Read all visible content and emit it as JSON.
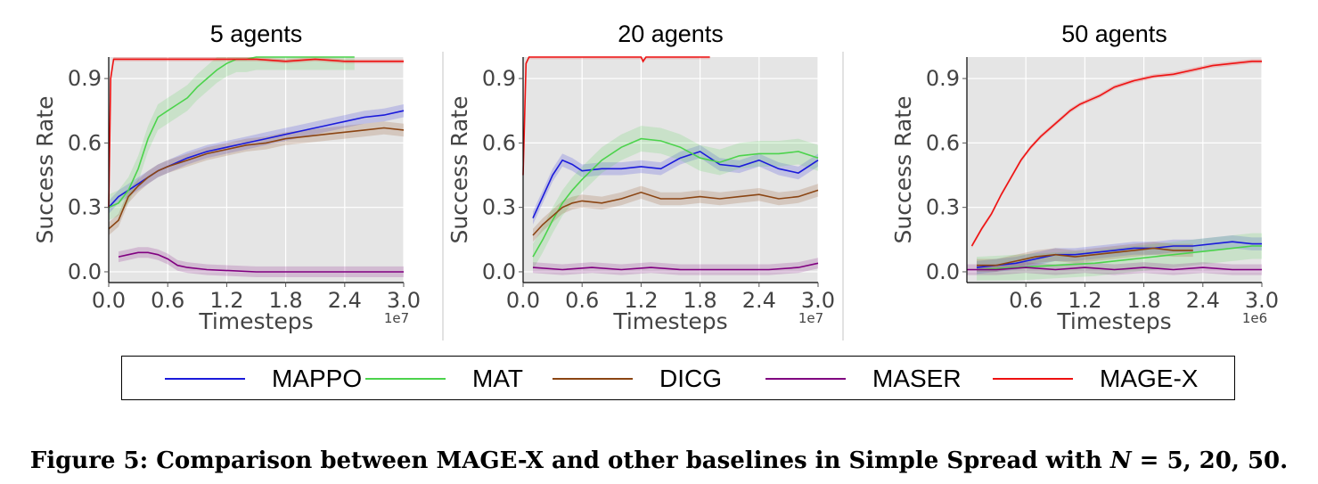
{
  "figure": {
    "caption_prefix": "Figure 5: Comparison between MAGE-X and other baselines in Simple Spread with ",
    "caption_var": "N",
    "caption_suffix": " = 5, 20, 50."
  },
  "legend": [
    {
      "name": "MAPPO",
      "color": "#1a1adb"
    },
    {
      "name": "MAT",
      "color": "#4cd34c"
    },
    {
      "name": "DICG",
      "color": "#8b4513"
    },
    {
      "name": "MASER",
      "color": "#800080"
    },
    {
      "name": "MAGE-X",
      "color": "#ee1111"
    }
  ],
  "chart_data": [
    {
      "type": "line",
      "title": "5 agents",
      "xlabel": "Timesteps",
      "ylabel": "Success Rate",
      "x_multiplier": "1e7",
      "xlim": [
        0.0,
        3.0
      ],
      "ylim": [
        -0.05,
        1.0
      ],
      "xticks": [
        "0.0",
        "0.6",
        "1.2",
        "1.8",
        "2.4",
        "3.0"
      ],
      "yticks": [
        "0.0",
        "0.3",
        "0.6",
        "0.9"
      ],
      "grid": true,
      "series": [
        {
          "name": "MAPPO",
          "x": [
            0.0,
            0.1,
            0.2,
            0.3,
            0.4,
            0.5,
            0.6,
            0.8,
            1.0,
            1.2,
            1.4,
            1.6,
            1.8,
            2.0,
            2.2,
            2.4,
            2.6,
            2.8,
            3.0
          ],
          "y": [
            0.3,
            0.35,
            0.38,
            0.41,
            0.44,
            0.47,
            0.49,
            0.53,
            0.56,
            0.58,
            0.6,
            0.62,
            0.64,
            0.66,
            0.68,
            0.7,
            0.72,
            0.73,
            0.75
          ]
        },
        {
          "name": "MAT",
          "x": [
            0.0,
            0.1,
            0.2,
            0.3,
            0.4,
            0.5,
            0.6,
            0.7,
            0.8,
            0.9,
            1.0,
            1.1,
            1.2,
            1.3,
            1.4,
            1.5,
            1.7,
            2.0,
            2.3,
            2.5
          ],
          "y": [
            0.3,
            0.32,
            0.38,
            0.48,
            0.62,
            0.72,
            0.75,
            0.78,
            0.81,
            0.86,
            0.9,
            0.94,
            0.97,
            0.99,
            0.99,
            1.0,
            1.0,
            1.0,
            1.0,
            1.0
          ]
        },
        {
          "name": "DICG",
          "x": [
            0.0,
            0.1,
            0.2,
            0.3,
            0.4,
            0.5,
            0.6,
            0.8,
            1.0,
            1.2,
            1.4,
            1.6,
            1.8,
            2.0,
            2.2,
            2.4,
            2.6,
            2.8,
            3.0
          ],
          "y": [
            0.2,
            0.24,
            0.35,
            0.4,
            0.44,
            0.47,
            0.49,
            0.52,
            0.55,
            0.57,
            0.59,
            0.6,
            0.62,
            0.63,
            0.64,
            0.65,
            0.66,
            0.67,
            0.66
          ]
        },
        {
          "name": "MASER",
          "x": [
            0.1,
            0.2,
            0.3,
            0.4,
            0.5,
            0.6,
            0.7,
            0.8,
            1.0,
            1.5,
            2.0,
            2.5,
            3.0
          ],
          "y": [
            0.07,
            0.08,
            0.09,
            0.09,
            0.08,
            0.06,
            0.03,
            0.02,
            0.01,
            0.0,
            0.0,
            0.0,
            0.0
          ]
        },
        {
          "name": "MAGE-X",
          "x": [
            0.0,
            0.02,
            0.05,
            0.1,
            0.3,
            0.6,
            0.9,
            1.2,
            1.5,
            1.8,
            2.1,
            2.4,
            2.7,
            3.0
          ],
          "y": [
            0.3,
            0.9,
            0.99,
            0.99,
            0.99,
            0.99,
            0.99,
            0.99,
            0.99,
            0.98,
            0.99,
            0.98,
            0.98,
            0.98
          ]
        }
      ]
    },
    {
      "type": "line",
      "title": "20 agents",
      "xlabel": "Timesteps",
      "ylabel": "Success Rate",
      "x_multiplier": "1e7",
      "xlim": [
        0.0,
        3.0
      ],
      "ylim": [
        -0.05,
        1.0
      ],
      "xticks": [
        "0.0",
        "0.6",
        "1.2",
        "1.8",
        "2.4",
        "3.0"
      ],
      "yticks": [
        "0.0",
        "0.3",
        "0.6",
        "0.9"
      ],
      "grid": true,
      "series": [
        {
          "name": "MAPPO",
          "x": [
            0.1,
            0.2,
            0.3,
            0.4,
            0.5,
            0.6,
            0.8,
            1.0,
            1.2,
            1.4,
            1.6,
            1.8,
            2.0,
            2.2,
            2.4,
            2.6,
            2.8,
            3.0
          ],
          "y": [
            0.25,
            0.35,
            0.45,
            0.52,
            0.5,
            0.47,
            0.48,
            0.48,
            0.49,
            0.48,
            0.53,
            0.56,
            0.5,
            0.49,
            0.52,
            0.48,
            0.46,
            0.52
          ]
        },
        {
          "name": "MAT",
          "x": [
            0.1,
            0.2,
            0.3,
            0.4,
            0.5,
            0.6,
            0.8,
            1.0,
            1.2,
            1.4,
            1.6,
            1.8,
            2.0,
            2.2,
            2.4,
            2.6,
            2.8,
            3.0
          ],
          "y": [
            0.07,
            0.15,
            0.24,
            0.32,
            0.38,
            0.43,
            0.52,
            0.58,
            0.62,
            0.61,
            0.58,
            0.53,
            0.51,
            0.54,
            0.55,
            0.55,
            0.56,
            0.53
          ]
        },
        {
          "name": "DICG",
          "x": [
            0.1,
            0.2,
            0.3,
            0.4,
            0.5,
            0.6,
            0.8,
            1.0,
            1.2,
            1.4,
            1.6,
            1.8,
            2.0,
            2.2,
            2.4,
            2.6,
            2.8,
            3.0
          ],
          "y": [
            0.17,
            0.22,
            0.26,
            0.3,
            0.32,
            0.33,
            0.32,
            0.34,
            0.37,
            0.34,
            0.34,
            0.35,
            0.34,
            0.35,
            0.36,
            0.34,
            0.35,
            0.38
          ]
        },
        {
          "name": "MASER",
          "x": [
            0.1,
            0.4,
            0.7,
            1.0,
            1.3,
            1.6,
            1.9,
            2.2,
            2.5,
            2.8,
            3.0
          ],
          "y": [
            0.02,
            0.01,
            0.02,
            0.01,
            0.02,
            0.01,
            0.01,
            0.01,
            0.01,
            0.02,
            0.04
          ]
        },
        {
          "name": "MAGE-X",
          "x": [
            0.0,
            0.03,
            0.06,
            0.1,
            0.4,
            0.8,
            1.2,
            1.22,
            1.25,
            1.5,
            1.9
          ],
          "y": [
            0.45,
            0.97,
            1.0,
            1.0,
            1.0,
            1.0,
            1.0,
            0.98,
            1.0,
            1.0,
            1.0
          ]
        }
      ]
    },
    {
      "type": "line",
      "title": "50 agents",
      "xlabel": "Timesteps",
      "ylabel": "Success Rate",
      "x_multiplier": "1e6",
      "xlim": [
        0.0,
        3.0
      ],
      "ylim": [
        -0.05,
        1.0
      ],
      "xticks": [
        "0.6",
        "1.2",
        "1.8",
        "2.4",
        "3.0"
      ],
      "yticks": [
        "0.0",
        "0.3",
        "0.6",
        "0.9"
      ],
      "grid": true,
      "series": [
        {
          "name": "MAPPO",
          "x": [
            0.1,
            0.3,
            0.5,
            0.7,
            0.9,
            1.1,
            1.3,
            1.5,
            1.7,
            1.9,
            2.1,
            2.3,
            2.5,
            2.7,
            2.9,
            3.0
          ],
          "y": [
            0.02,
            0.03,
            0.04,
            0.06,
            0.08,
            0.08,
            0.09,
            0.1,
            0.11,
            0.11,
            0.12,
            0.12,
            0.13,
            0.14,
            0.13,
            0.13
          ]
        },
        {
          "name": "MAT",
          "x": [
            0.1,
            0.5,
            0.9,
            1.3,
            1.7,
            2.1,
            2.5,
            2.9,
            3.0
          ],
          "y": [
            0.01,
            0.02,
            0.03,
            0.04,
            0.06,
            0.08,
            0.1,
            0.12,
            0.12
          ]
        },
        {
          "name": "DICG",
          "x": [
            0.1,
            0.3,
            0.5,
            0.7,
            0.9,
            1.1,
            1.3,
            1.5,
            1.7,
            1.9,
            2.1,
            2.3
          ],
          "y": [
            0.03,
            0.03,
            0.05,
            0.07,
            0.08,
            0.07,
            0.08,
            0.09,
            0.1,
            0.11,
            0.1,
            0.1
          ]
        },
        {
          "name": "MASER",
          "x": [
            0.0,
            0.3,
            0.6,
            0.9,
            1.2,
            1.5,
            1.8,
            2.1,
            2.4,
            2.7,
            3.0
          ],
          "y": [
            0.01,
            0.01,
            0.02,
            0.01,
            0.02,
            0.01,
            0.02,
            0.01,
            0.02,
            0.01,
            0.01
          ]
        },
        {
          "name": "MAGE-X",
          "x": [
            0.05,
            0.15,
            0.25,
            0.35,
            0.45,
            0.55,
            0.65,
            0.75,
            0.85,
            0.95,
            1.05,
            1.15,
            1.25,
            1.35,
            1.5,
            1.7,
            1.9,
            2.1,
            2.3,
            2.5,
            2.7,
            2.9,
            3.0
          ],
          "y": [
            0.12,
            0.2,
            0.27,
            0.36,
            0.44,
            0.52,
            0.58,
            0.63,
            0.67,
            0.71,
            0.75,
            0.78,
            0.8,
            0.82,
            0.86,
            0.89,
            0.91,
            0.92,
            0.94,
            0.96,
            0.97,
            0.98,
            0.98
          ]
        }
      ]
    }
  ]
}
